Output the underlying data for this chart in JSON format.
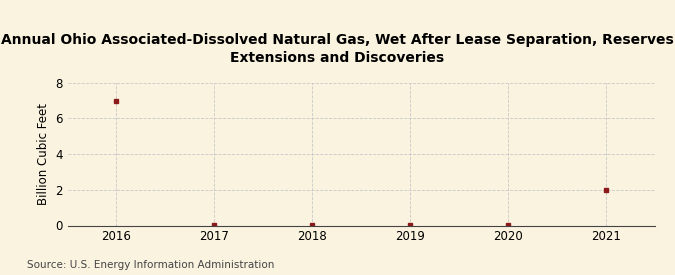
{
  "title": "Annual Ohio Associated-Dissolved Natural Gas, Wet After Lease Separation, Reserves\nExtensions and Discoveries",
  "ylabel": "Billion Cubic Feet",
  "source": "Source: U.S. Energy Information Administration",
  "x": [
    2016,
    2017,
    2018,
    2019,
    2020,
    2021
  ],
  "y": [
    6.967,
    0.032,
    0.02,
    0.018,
    0.025,
    1.962
  ],
  "xlim": [
    2015.5,
    2021.5
  ],
  "ylim": [
    0,
    8
  ],
  "yticks": [
    0,
    2,
    4,
    6,
    8
  ],
  "xticks": [
    2016,
    2017,
    2018,
    2019,
    2020,
    2021
  ],
  "marker_color": "#8B1A1A",
  "background_color": "#FAF3E0",
  "grid_color": "#C8C8C8",
  "title_fontsize": 10,
  "label_fontsize": 8.5,
  "tick_fontsize": 8.5,
  "source_fontsize": 7.5
}
